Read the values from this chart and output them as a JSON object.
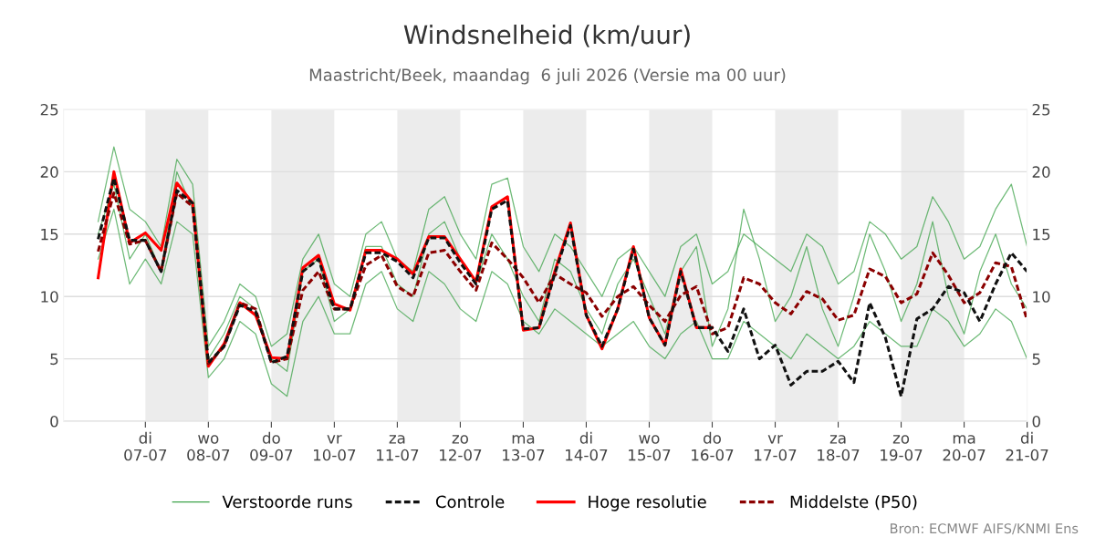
{
  "chart_data": {
    "type": "line",
    "title": "Windsnelheid (km/uur)",
    "subtitle": "Maastricht/Beek, maandag  6 juli 2026 (Versie ma 00 uur)",
    "xlim": [
      "2026-07-05T16:48",
      "2026-07-21"
    ],
    "xticks": [
      {
        "value": "2026-07-07",
        "label": "di\n07-07"
      },
      {
        "value": "2026-07-08",
        "label": "wo\n08-07"
      },
      {
        "value": "2026-07-09",
        "label": "do\n09-07"
      },
      {
        "value": "2026-07-10",
        "label": "vr\n10-07"
      },
      {
        "value": "2026-07-11",
        "label": "za\n11-07"
      },
      {
        "value": "2026-07-12",
        "label": "zo\n12-07"
      },
      {
        "value": "2026-07-13",
        "label": "ma\n13-07"
      },
      {
        "value": "2026-07-14",
        "label": "di\n14-07"
      },
      {
        "value": "2026-07-15",
        "label": "wo\n15-07"
      },
      {
        "value": "2026-07-16",
        "label": "do\n16-07"
      },
      {
        "value": "2026-07-17",
        "label": "vr\n17-07"
      },
      {
        "value": "2026-07-18",
        "label": "za\n18-07"
      },
      {
        "value": "2026-07-19",
        "label": "zo\n19-07"
      },
      {
        "value": "2026-07-20",
        "label": "ma\n20-07"
      },
      {
        "value": "2026-07-21",
        "label": "di\n21-07"
      }
    ],
    "ylim": [
      0,
      25
    ],
    "yticks": [
      0,
      5,
      10,
      15,
      20,
      25
    ],
    "y2lim": [
      0,
      25
    ],
    "y2ticks": [
      0,
      5,
      10,
      15,
      20,
      25
    ],
    "grid": "y",
    "legend": "bottom",
    "bands": [
      {
        "axis": "x",
        "from": "2026-07-07",
        "to": "2026-07-08",
        "color": "#ececec"
      },
      {
        "axis": "x",
        "from": "2026-07-09",
        "to": "2026-07-10",
        "color": "#ececec"
      },
      {
        "axis": "x",
        "from": "2026-07-11",
        "to": "2026-07-12",
        "color": "#ececec"
      },
      {
        "axis": "x",
        "from": "2026-07-13",
        "to": "2026-07-14",
        "color": "#ececec"
      },
      {
        "axis": "x",
        "from": "2026-07-15",
        "to": "2026-07-16",
        "color": "#ececec"
      },
      {
        "axis": "x",
        "from": "2026-07-17",
        "to": "2026-07-18",
        "color": "#ececec"
      },
      {
        "axis": "x",
        "from": "2026-07-19",
        "to": "2026-07-20",
        "color": "#ececec"
      }
    ],
    "annotations": [
      "Bron: ECMWF AIFS/KNMI Ens"
    ],
    "x": [
      "2026-07-06T06:00",
      "2026-07-06T12:00",
      "2026-07-06T18:00",
      "2026-07-07T00:00",
      "2026-07-07T06:00",
      "2026-07-07T12:00",
      "2026-07-07T18:00",
      "2026-07-08T00:00",
      "2026-07-08T06:00",
      "2026-07-08T12:00",
      "2026-07-08T18:00",
      "2026-07-09T00:00",
      "2026-07-09T06:00",
      "2026-07-09T12:00",
      "2026-07-09T18:00",
      "2026-07-10T00:00",
      "2026-07-10T06:00",
      "2026-07-10T12:00",
      "2026-07-10T18:00",
      "2026-07-11T00:00",
      "2026-07-11T06:00",
      "2026-07-11T12:00",
      "2026-07-11T18:00",
      "2026-07-12T00:00",
      "2026-07-12T06:00",
      "2026-07-12T12:00",
      "2026-07-12T18:00",
      "2026-07-13T00:00",
      "2026-07-13T06:00",
      "2026-07-13T12:00",
      "2026-07-13T18:00",
      "2026-07-14T00:00",
      "2026-07-14T06:00",
      "2026-07-14T12:00",
      "2026-07-14T18:00",
      "2026-07-15T00:00",
      "2026-07-15T06:00",
      "2026-07-15T12:00",
      "2026-07-15T18:00",
      "2026-07-16T00:00",
      "2026-07-16T06:00",
      "2026-07-16T12:00",
      "2026-07-16T18:00",
      "2026-07-17T00:00",
      "2026-07-17T06:00",
      "2026-07-17T12:00",
      "2026-07-17T18:00",
      "2026-07-18T00:00",
      "2026-07-18T06:00",
      "2026-07-18T12:00",
      "2026-07-18T18:00",
      "2026-07-19T00:00",
      "2026-07-19T06:00",
      "2026-07-19T12:00",
      "2026-07-19T18:00",
      "2026-07-20T00:00",
      "2026-07-20T06:00",
      "2026-07-20T12:00",
      "2026-07-20T18:00",
      "2026-07-21T00:00"
    ],
    "series": [
      {
        "name": "Verstoorde runs",
        "color": "#3da34a",
        "line_style": "solid",
        "values": [
          16,
          22,
          17,
          16,
          14,
          21,
          19,
          6,
          8,
          11,
          10,
          6,
          7,
          13,
          15,
          11,
          10,
          15,
          16,
          13,
          12,
          17,
          18,
          15,
          13,
          19,
          19.5,
          14,
          12,
          15,
          14,
          12,
          10,
          13,
          14,
          12,
          10,
          14,
          15,
          11,
          12,
          15,
          14,
          13,
          12,
          15,
          14,
          11,
          12,
          16,
          15,
          13,
          14,
          18,
          16,
          13,
          14,
          17,
          19,
          14
        ]
      },
      {
        "color": "#3da34a",
        "line_style": "solid",
        "values": [
          13,
          17,
          11,
          13,
          11,
          16,
          15,
          3.5,
          5,
          8,
          7,
          3,
          2,
          8,
          10,
          7,
          7,
          11,
          12,
          9,
          8,
          12,
          11,
          9,
          8,
          12,
          11,
          8,
          7,
          9,
          8,
          7,
          6,
          7,
          8,
          6,
          5,
          7,
          8,
          5,
          5,
          8,
          7,
          6,
          5,
          7,
          6,
          5,
          6,
          8,
          7,
          6,
          6,
          9,
          8,
          6,
          7,
          9,
          8,
          5
        ]
      },
      {
        "color": "#3da34a",
        "line_style": "solid",
        "values": [
          15,
          19,
          13,
          15,
          12,
          20,
          17,
          5,
          7,
          10,
          9,
          5,
          4,
          12,
          13,
          8,
          9,
          14,
          14,
          11,
          10,
          15,
          16,
          13,
          11,
          15,
          13,
          10,
          8,
          13,
          12,
          9,
          7,
          11,
          13,
          10,
          7,
          12,
          14,
          6,
          9,
          17,
          13,
          8,
          10,
          14,
          9,
          6,
          10,
          15,
          12,
          8,
          11,
          16,
          10,
          7,
          12,
          15,
          11,
          9
        ]
      },
      {
        "name": "Controle",
        "color": "#111111",
        "line_style": "dashed",
        "values": [
          14.6,
          19.5,
          14.5,
          14.5,
          12,
          18.5,
          17.5,
          4.7,
          6,
          9.3,
          8.8,
          4.7,
          5.2,
          12,
          13,
          9,
          9,
          13.5,
          13.5,
          12.8,
          11.5,
          14.7,
          14.7,
          12.7,
          11,
          17,
          17.7,
          7.4,
          7.5,
          11.8,
          15.7,
          8.5,
          6,
          9,
          13.8,
          8.3,
          6.1,
          12,
          7.5,
          7.5,
          5.6,
          9,
          5,
          6.1,
          2.9,
          4,
          4,
          4.8,
          3.1,
          9.5,
          6.7,
          2,
          8.2,
          9,
          10.8,
          10.3,
          8,
          11,
          13.5,
          12
        ]
      },
      {
        "name": "Hoge resolutie",
        "color": "#ff0000",
        "line_style": "solid",
        "x": [
          "2026-07-06T06:00",
          "2026-07-06T12:00",
          "2026-07-06T18:00",
          "2026-07-07T00:00",
          "2026-07-07T06:00",
          "2026-07-07T12:00",
          "2026-07-07T18:00",
          "2026-07-08T00:00",
          "2026-07-08T06:00",
          "2026-07-08T12:00",
          "2026-07-08T18:00",
          "2026-07-09T00:00",
          "2026-07-09T06:00",
          "2026-07-09T12:00",
          "2026-07-09T18:00",
          "2026-07-10T00:00",
          "2026-07-10T06:00",
          "2026-07-10T12:00",
          "2026-07-10T18:00",
          "2026-07-11T00:00",
          "2026-07-11T06:00",
          "2026-07-11T12:00",
          "2026-07-11T18:00",
          "2026-07-12T00:00",
          "2026-07-12T06:00",
          "2026-07-12T12:00",
          "2026-07-12T18:00",
          "2026-07-13T00:00",
          "2026-07-13T06:00",
          "2026-07-13T12:00",
          "2026-07-13T18:00",
          "2026-07-14T00:00",
          "2026-07-14T06:00",
          "2026-07-14T12:00",
          "2026-07-14T18:00",
          "2026-07-15T00:00",
          "2026-07-15T06:00",
          "2026-07-15T12:00",
          "2026-07-15T18:00",
          "2026-07-16T00:00"
        ],
        "values": [
          11.5,
          20,
          14.3,
          15.1,
          13.7,
          19.1,
          17.5,
          4.4,
          6.2,
          9.5,
          8.5,
          5.1,
          5,
          12.3,
          13.3,
          9.4,
          8.9,
          13.7,
          13.7,
          13,
          11.8,
          14.8,
          14.8,
          13,
          11.2,
          17.2,
          18,
          7.3,
          7.5,
          12,
          15.9,
          8.5,
          5.8,
          9,
          14,
          8.3,
          6.1,
          12.2,
          7.5,
          7.5
        ]
      },
      {
        "name": "Middelste (P50)",
        "color": "#8b0000",
        "line_style": "dashed",
        "values": [
          13.6,
          18.3,
          14.2,
          14.5,
          12,
          18.3,
          17.2,
          4.6,
          6,
          9.5,
          9,
          4.7,
          5,
          10.5,
          12,
          9,
          9,
          12.5,
          13.3,
          10.8,
          10,
          13.5,
          13.7,
          12,
          10.5,
          14.3,
          13,
          11.5,
          9.5,
          11.8,
          11,
          10.3,
          8.4,
          10,
          10.8,
          9.3,
          8,
          10.1,
          10.8,
          7,
          7.5,
          11.5,
          11,
          9.5,
          8.6,
          10.4,
          9.8,
          8.1,
          8.5,
          12.2,
          11.6,
          9.5,
          10.2,
          13.5,
          11.7,
          9.5,
          10.3,
          12.7,
          12.4,
          8.1
        ]
      }
    ]
  }
}
